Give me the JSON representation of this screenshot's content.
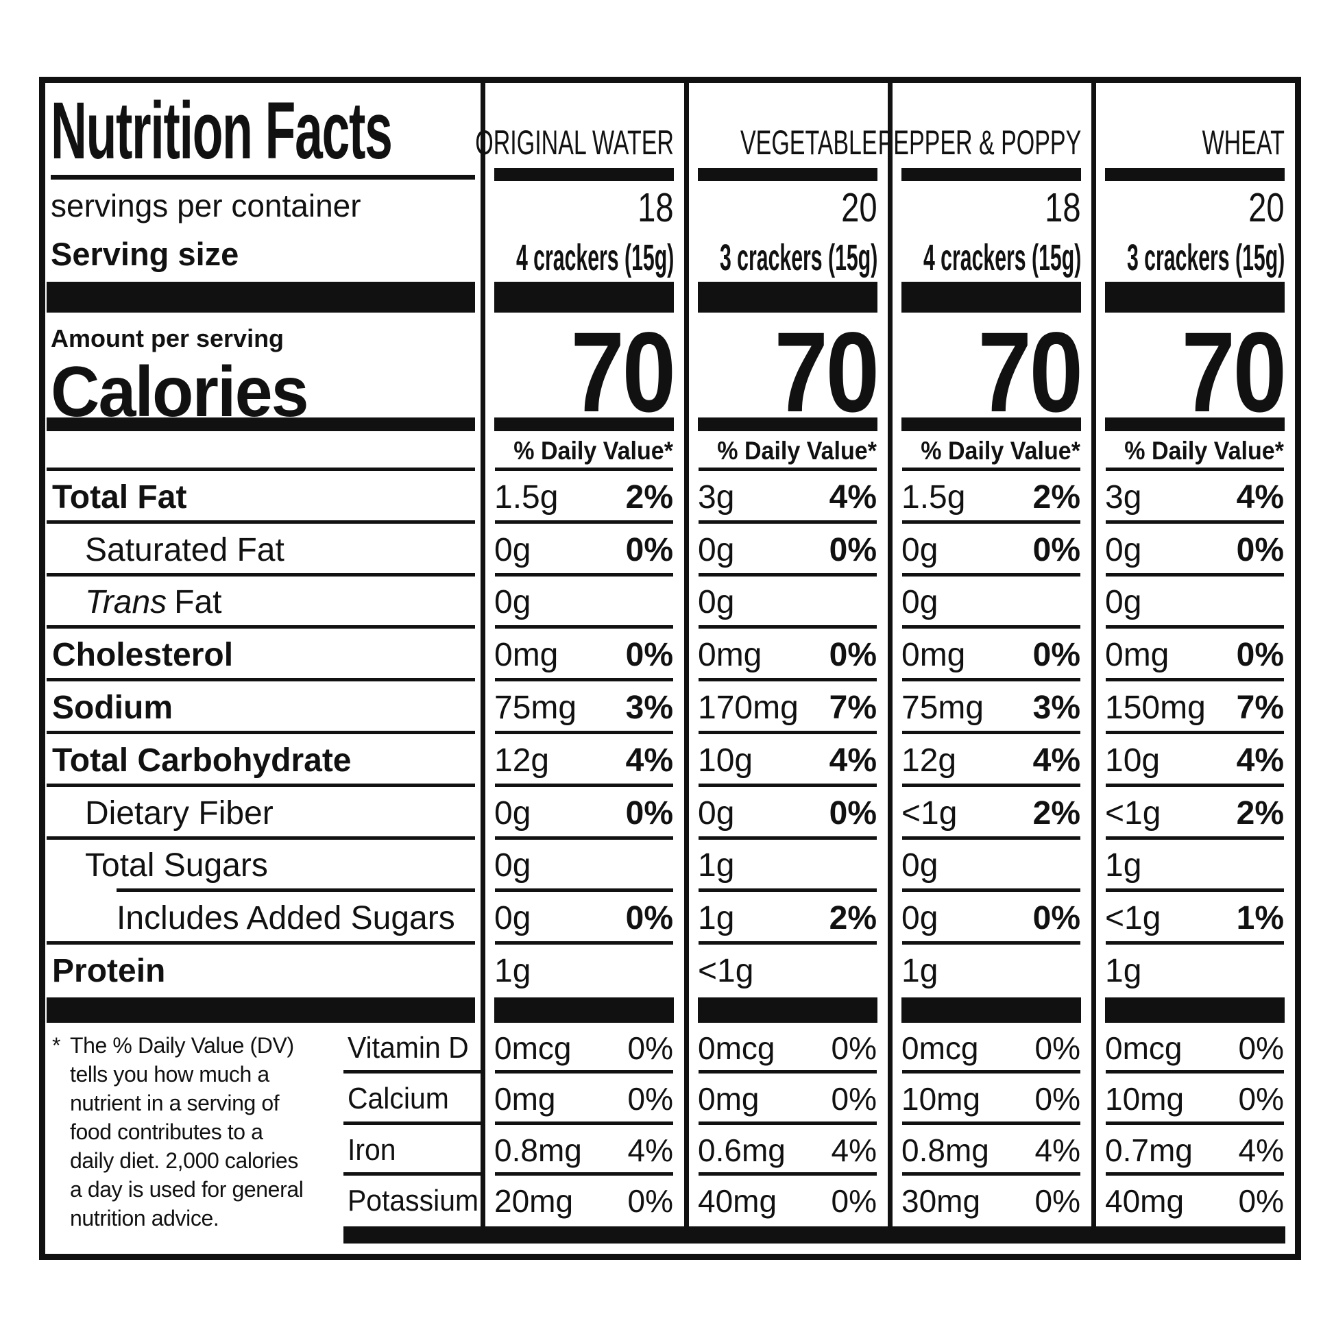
{
  "title": "Nutrition Facts",
  "servings_per_container_label": "servings per container",
  "serving_size_label": "Serving size",
  "amount_per_serving_label": "Amount per serving",
  "calories_label": "Calories",
  "daily_value_header": "% Daily Value*",
  "footnote_marker": "*",
  "footnote": "The % Daily Value (DV)\ntells you how much a\nnutrient in a serving of\nfood contributes to a\ndaily diet. 2,000 calories\na day is used for general\nnutrition advice.",
  "colors": {
    "ink": "#111111",
    "background": "#ffffff"
  },
  "columns": [
    {
      "flavor": "ORIGINAL WATER",
      "servings_per_container": "18",
      "serving_size": "4 crackers (15g)",
      "calories": "70"
    },
    {
      "flavor": "VEGETABLE",
      "servings_per_container": "20",
      "serving_size": "3 crackers (15g)",
      "calories": "70"
    },
    {
      "flavor": "PEPPER & POPPY",
      "servings_per_container": "18",
      "serving_size": "4 crackers (15g)",
      "calories": "70"
    },
    {
      "flavor": "WHEAT",
      "servings_per_container": "20",
      "serving_size": "3 crackers (15g)",
      "calories": "70"
    }
  ],
  "nutrients": [
    {
      "name": "Total Fat",
      "values": [
        "1.5g",
        "3g",
        "1.5g",
        "3g"
      ],
      "dv": [
        "2%",
        "4%",
        "2%",
        "4%"
      ]
    },
    {
      "name": "Saturated Fat",
      "values": [
        "0g",
        "0g",
        "0g",
        "0g"
      ],
      "dv": [
        "0%",
        "0%",
        "0%",
        "0%"
      ]
    },
    {
      "name_italic": "Trans",
      "name_rest": "Fat",
      "values": [
        "0g",
        "0g",
        "0g",
        "0g"
      ],
      "dv": [
        "",
        "",
        "",
        ""
      ]
    },
    {
      "name": "Cholesterol",
      "values": [
        "0mg",
        "0mg",
        "0mg",
        "0mg"
      ],
      "dv": [
        "0%",
        "0%",
        "0%",
        "0%"
      ]
    },
    {
      "name": "Sodium",
      "values": [
        "75mg",
        "170mg",
        "75mg",
        "150mg"
      ],
      "dv": [
        "3%",
        "7%",
        "3%",
        "7%"
      ]
    },
    {
      "name": "Total Carbohydrate",
      "values": [
        "12g",
        "10g",
        "12g",
        "10g"
      ],
      "dv": [
        "4%",
        "4%",
        "4%",
        "4%"
      ]
    },
    {
      "name": "Dietary Fiber",
      "values": [
        "0g",
        "0g",
        "<1g",
        "<1g"
      ],
      "dv": [
        "0%",
        "0%",
        "2%",
        "2%"
      ]
    },
    {
      "name": "Total Sugars",
      "values": [
        "0g",
        "1g",
        "0g",
        "1g"
      ],
      "dv": [
        "",
        "",
        "",
        ""
      ]
    },
    {
      "name": "Includes Added Sugars",
      "values": [
        "0g",
        "1g",
        "0g",
        "<1g"
      ],
      "dv": [
        "0%",
        "2%",
        "0%",
        "1%"
      ]
    },
    {
      "name": "Protein",
      "values": [
        "1g",
        "<1g",
        "1g",
        "1g"
      ],
      "dv": [
        "",
        "",
        "",
        ""
      ]
    }
  ],
  "vitamins": [
    {
      "name": "Vitamin D",
      "values": [
        "0mcg",
        "0mcg",
        "0mcg",
        "0mcg"
      ],
      "dv": [
        "0%",
        "0%",
        "0%",
        "0%"
      ]
    },
    {
      "name": "Calcium",
      "values": [
        "0mg",
        "0mg",
        "10mg",
        "10mg"
      ],
      "dv": [
        "0%",
        "0%",
        "0%",
        "0%"
      ]
    },
    {
      "name": "Iron",
      "values": [
        "0.8mg",
        "0.6mg",
        "0.8mg",
        "0.7mg"
      ],
      "dv": [
        "4%",
        "4%",
        "4%",
        "4%"
      ]
    },
    {
      "name": "Potassium",
      "values": [
        "20mg",
        "40mg",
        "30mg",
        "40mg"
      ],
      "dv": [
        "0%",
        "0%",
        "0%",
        "0%"
      ]
    }
  ]
}
